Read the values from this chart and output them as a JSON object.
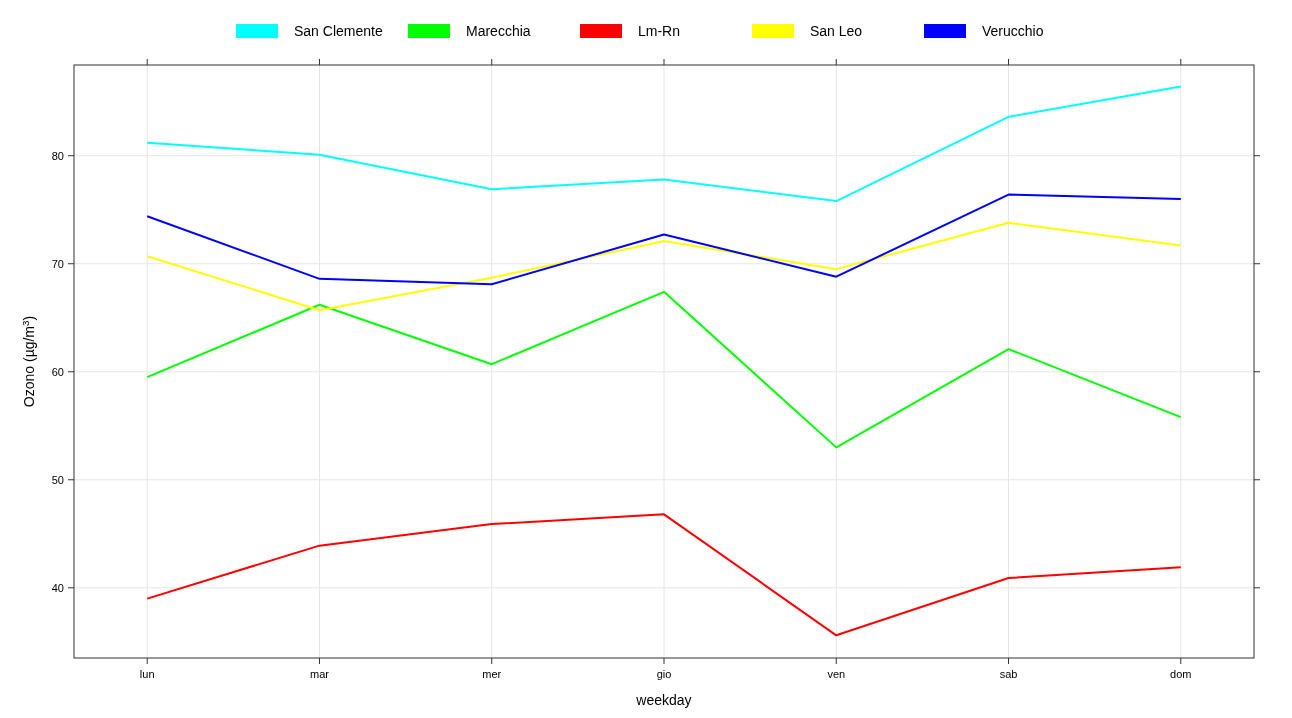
{
  "chart_data": {
    "type": "line",
    "xlabel": "weekday",
    "ylabel": "Ozono (µg/m$^{3}$)",
    "categories": [
      "lun",
      "mar",
      "mer",
      "gio",
      "ven",
      "sab",
      "dom"
    ],
    "ylim": [
      33.5,
      88.4
    ],
    "yticks": [
      40,
      50,
      60,
      70,
      80
    ],
    "grid": true,
    "legend": "top",
    "line_style": "solid",
    "marker": "none",
    "series": [
      {
        "name": "San Clemente",
        "color": "#00ffff",
        "values": [
          81.2,
          80.1,
          76.9,
          77.8,
          75.8,
          83.6,
          86.4
        ]
      },
      {
        "name": "Marecchia",
        "color": "#00ff00",
        "values": [
          59.5,
          66.2,
          60.7,
          67.4,
          53.0,
          62.1,
          55.8
        ]
      },
      {
        "name": "Lm-Rn",
        "color": "#ff0000",
        "values": [
          39.0,
          43.9,
          45.9,
          46.8,
          35.6,
          40.9,
          41.9
        ]
      },
      {
        "name": "San Leo",
        "color": "#ffff00",
        "values": [
          70.7,
          65.7,
          68.7,
          72.1,
          69.5,
          73.8,
          71.7
        ]
      },
      {
        "name": "Verucchio",
        "color": "#0000ff",
        "values": [
          74.4,
          68.6,
          68.1,
          72.7,
          68.8,
          76.4,
          76.0
        ]
      }
    ]
  }
}
